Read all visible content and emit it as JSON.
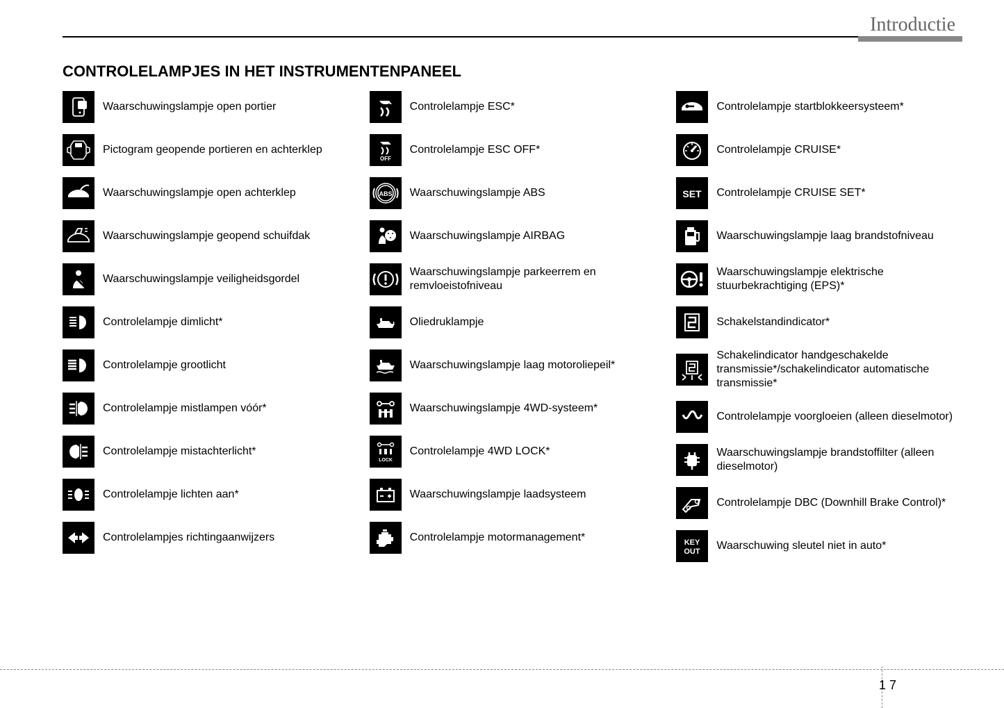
{
  "header": {
    "section": "Introductie",
    "title": "CONTROLELAMPJES IN HET INSTRUMENTENPANEEL"
  },
  "columns": [
    {
      "items": [
        {
          "icon": "door-open-icon",
          "label": "Waarschuwingslampje open portier"
        },
        {
          "icon": "doors-diagram-icon",
          "label": "Pictogram geopende portieren en achterklep"
        },
        {
          "icon": "trunk-open-icon",
          "label": "Waarschuwingslampje open achterklep"
        },
        {
          "icon": "sunroof-open-icon",
          "label": "Waarschuwingslampje geopend schuifdak"
        },
        {
          "icon": "seatbelt-icon",
          "label": "Waarschuwingslampje veiligheidsgordel"
        },
        {
          "icon": "low-beam-icon",
          "label": "Controlelampje dimlicht*"
        },
        {
          "icon": "high-beam-icon",
          "label": "Controlelampje grootlicht"
        },
        {
          "icon": "front-fog-icon",
          "label": "Controlelampje mistlampen vóór*"
        },
        {
          "icon": "rear-fog-icon",
          "label": "Controlelampje mistachterlicht*"
        },
        {
          "icon": "lights-on-icon",
          "label": "Controlelampje lichten aan*"
        },
        {
          "icon": "turn-signals-icon",
          "label": "Controlelampjes richtingaanwijzers"
        }
      ]
    },
    {
      "items": [
        {
          "icon": "esc-icon",
          "label": "Controlelampje ESC*"
        },
        {
          "icon": "esc-off-icon",
          "label": "Controlelampje ESC OFF*"
        },
        {
          "icon": "abs-icon",
          "label": "Waarschuwingslampje ABS"
        },
        {
          "icon": "airbag-icon",
          "label": "Waarschuwingslampje AIRBAG"
        },
        {
          "icon": "brake-warning-icon",
          "label": "Waarschuwingslampje parkeerrem en remvloeistofniveau"
        },
        {
          "icon": "oil-pressure-icon",
          "label": "Oliedruklampje"
        },
        {
          "icon": "oil-level-icon",
          "label": "Waarschuwingslampje laag motoroliepeil*"
        },
        {
          "icon": "4wd-icon",
          "label": "Waarschuwingslampje 4WD-systeem*"
        },
        {
          "icon": "4wd-lock-icon",
          "label": "Controlelampje 4WD LOCK*"
        },
        {
          "icon": "battery-icon",
          "label": "Waarschuwingslampje laadsysteem"
        },
        {
          "icon": "engine-icon",
          "label": "Controlelampje motormanagement*"
        }
      ]
    },
    {
      "items": [
        {
          "icon": "immobilizer-icon",
          "label": "Controlelampje startblokkeersysteem*"
        },
        {
          "icon": "cruise-icon",
          "label": "Controlelampje CRUISE*"
        },
        {
          "icon": "cruise-set-icon",
          "label": "Controlelampje CRUISE SET*"
        },
        {
          "icon": "fuel-low-icon",
          "label": "Waarschuwingslampje laag brandstofniveau"
        },
        {
          "icon": "eps-icon",
          "label": "Waarschuwingslampje elektrische stuurbekrachtiging (EPS)*"
        },
        {
          "icon": "gear-indicator-icon",
          "label": "Schakelstandindicator*"
        },
        {
          "icon": "shift-indicator-icon",
          "label": "Schakelindicator handgeschakelde transmissie*/schakelindicator automatische transmissie*"
        },
        {
          "icon": "glow-plug-icon",
          "label": "Controlelampje voorgloeien (alleen dieselmotor)"
        },
        {
          "icon": "fuel-filter-icon",
          "label": "Waarschuwingslampje brandstoffilter (alleen dieselmotor)"
        },
        {
          "icon": "dbc-icon",
          "label": "Controlelampje DBC (Downhill Brake Control)*"
        },
        {
          "icon": "key-out-icon",
          "label": "Waarschuwing sleutel niet in auto*"
        }
      ]
    }
  ],
  "page": {
    "chapter": "1",
    "number": "7"
  },
  "style": {
    "icon_bg": "#000000",
    "icon_fg": "#ffffff",
    "text_color": "#000000",
    "section_color": "#666666",
    "body_font": "Arial, Helvetica, sans-serif",
    "title_fontsize": 22,
    "label_fontsize": 16,
    "section_fontsize": 28,
    "icon_size": 46
  },
  "icon_svgs": {
    "door-open-icon": "<rect x='11' y='6' width='16' height='26' rx='3' fill='none' stroke='#fff' stroke-width='1.8'/><rect x='18' y='10' width='13' height='12' rx='2' fill='#fff'/><circle cx='21' cy='27' r='1.5' fill='#fff'/>",
    "doors-diagram-icon": "<path d='M12 6 h14 l4 6 v14 l-4 6 h-14 l-4-6 v-14 z' fill='none' stroke='#fff' stroke-width='1.5'/><rect x='14' y='9' width='10' height='6' fill='#fff'/><path d='M8 14 l-5 2 v6 l5 2 M30 14 l5 2 v6 l-5 2' fill='none' stroke='#fff' stroke-width='1.5'/>",
    "trunk-open-icon": "<path d='M4 22 c3-6 10-8 15-8 s12 2 15 8 v3 h-30 z' fill='#fff'/><path d='M22 14 q6 -8 12 -6' fill='none' stroke='#fff' stroke-width='2'/>",
    "sunroof-open-icon": "<path d='M4 24 c4-7 11-9 15-9 s11 2 15 9 v3 h-30 z' fill='none' stroke='#fff' stroke-width='1.8'/><path d='M14 15 l4-7 h6 l-2 7' fill='none' stroke='#fff' stroke-width='1.8'/><path d='M28 8 h4 M28 12 h4' stroke='#fff' stroke-width='1.5'/>",
    "seatbelt-icon": "<circle cx='19' cy='10' r='4' fill='#fff'/><path d='M11 32 c0-8 5-12 8-12 s8 4 8 12 z' fill='#fff'/><path d='M10 12 L28 30' stroke='#000' stroke-width='3'/>",
    "low-beam-icon": "<path d='M20 9 a10 10 0 0 1 0 20 z' fill='#fff'/><path d='M6 12 h10 M6 16 h10 M6 20 h10 M6 24 h10' stroke='#fff' stroke-width='2'/>",
    "high-beam-icon": "<path d='M20 9 a10 10 0 0 1 0 20 z' fill='#fff'/><path d='M4 12 h12 M4 16 h12 M4 20 h12 M4 24 h12' stroke='#fff' stroke-width='2.5'/>",
    "front-fog-icon": "<path d='M22 9 a10 10 0 0 1 0 20 l-4 -3 v-14 z' fill='#fff'/><path d='M6 13 h8 M6 19 h8 M6 25 h8' stroke='#fff' stroke-width='2.5'/><path d='M16 8 v22' stroke='#fff' stroke-width='1.5'/>",
    "rear-fog-icon": "<path d='M16 9 a10 10 0 0 0 0 20 l4 -3 v-14 z' fill='#fff'/><path d='M24 13 h8 M24 19 h8 M24 25 h8' stroke='#fff' stroke-width='2.5'/><path d='M22 8 v22' stroke='#fff' stroke-width='1.5'/>",
    "lights-on-icon": "<ellipse cx='19' cy='19' rx='6' ry='9' fill='#fff'/><path d='M4 14 h6 M4 19 h6 M4 24 h6 M28 14 h6 M28 19 h6 M28 24 h6' stroke='#fff' stroke-width='2'/>",
    "turn-signals-icon": "<path d='M4 19 l10-8 v5 h4 v6 h-4 v5 z' fill='#fff'/><path d='M34 19 l-10-8 v5 h-4 v6 h4 v5 z' fill='#fff'/>",
    "esc-icon": "<path d='M10 10 h14 l4 5 h-14 z' fill='#fff'/><circle cx='14' cy='16' r='2' fill='#000'/><circle cx='24' cy='16' r='2' fill='#000'/><path d='M12 20 q6 6 0 12 M20 20 q6 6 0 12' stroke='#fff' stroke-width='2.5' fill='none'/>",
    "esc-off-icon": "<path d='M11 7 h12 l4 4 h-12 z' fill='#fff'/><path d='M13 15 q5 5 0 10 M20 15 q5 5 0 10' stroke='#fff' stroke-width='2' fill='none'/><text x='19' y='34' font-size='8' fill='#fff' text-anchor='middle' font-family='Arial' font-weight='bold'>OFF</text>",
    "abs-icon": "<circle cx='19' cy='19' r='11' fill='none' stroke='#fff' stroke-width='1.5'/><circle cx='19' cy='19' r='14' fill='none' stroke='#fff' stroke-width='1.5'/><path d='M3 12 a17 17 0 0 0 0 14 M35 12 a17 17 0 0 1 0 14' stroke='#fff' stroke-width='2' fill='none'/><text x='19' y='23' font-size='9' fill='#fff' text-anchor='middle' font-family='Arial' font-weight='bold'>ABS</text>",
    "airbag-icon": "<circle cx='14' cy='10' r='3.5' fill='#fff'/><path d='M9 30 c0-7 3-12 6-12 l4 5 v7 z' fill='#fff'/><circle cx='26' cy='18' r='8' fill='#fff'/><circle cx='23' cy='15' r='1' fill='#000'/><circle cx='29' cy='15' r='1' fill='#000'/><circle cx='26' cy='21' r='1' fill='#000'/>",
    "brake-warning-icon": "<circle cx='19' cy='19' r='11' fill='none' stroke='#fff' stroke-width='2'/><path d='M4 11 a16 16 0 0 0 0 16 M34 11 a16 16 0 0 1 0 16' stroke='#fff' stroke-width='2.5' fill='none'/><rect x='17.5' y='12' width='3' height='9' fill='#fff'/><circle cx='19' cy='25' r='1.8' fill='#fff'/>",
    "oil-pressure-icon": "<path d='M6 21 h4 l2-4 h12 l3 4 h5 l-3 6 h-20 z' fill='#fff'/><rect x='11' y='13' width='3' height='4' fill='#fff'/><path d='M30 17 q3 3 0 6' fill='#fff'/>",
    "oil-level-icon": "<path d='M6 19 h4 l2-4 h12 l3 4 h5 l-3 6 h-20 z' fill='#fff'/><rect x='11' y='11' width='3' height='4' fill='#fff'/><path d='M6 29 q4 -2 8 0 t8 0 t8 0' stroke='#fff' stroke-width='1.5' fill='none'/>",
    "4wd-icon": "<circle cx='10' cy='12' r='3' fill='none' stroke='#fff' stroke-width='1.8'/><circle cx='28' cy='12' r='3' fill='none' stroke='#fff' stroke-width='1.8'/><path d='M13 12 h12' stroke='#fff' stroke-width='1.8'/><rect x='9' y='20' width='4' height='12' fill='#fff'/><rect x='17' y='20' width='4' height='12' fill='#fff'/><rect x='25' y='20' width='4' height='12' fill='#fff'/><path d='M11 24 h16' stroke='#fff' stroke-width='2'/>",
    "4wd-lock-icon": "<circle cx='10' cy='9' r='2.5' fill='none' stroke='#fff' stroke-width='1.5'/><circle cx='28' cy='9' r='2.5' fill='none' stroke='#fff' stroke-width='1.5'/><path d='M12 9 h14' stroke='#fff' stroke-width='1.5'/><rect x='10' y='15' width='3' height='8' fill='#fff'/><rect x='17' y='15' width='4' height='8' fill='#fff'/><rect x='25' y='15' width='3' height='8' fill='#fff'/><text x='19' y='33' font-size='7' fill='#fff' text-anchor='middle' font-family='Arial' font-weight='bold'>LOCK</text>",
    "battery-icon": "<rect x='7' y='13' width='24' height='16' fill='none' stroke='#fff' stroke-width='2'/><rect x='11' y='9' width='4' height='4' fill='#fff'/><rect x='23' y='9' width='4' height='4' fill='#fff'/><path d='M11 21 h5' stroke='#fff' stroke-width='2'/><path d='M22 21 h5 M24.5 18.5 v5' stroke='#fff' stroke-width='2'/>",
    "engine-icon": "<path d='M9 14 h4 v-3 h10 v3 h4 v4 h3 v6 h-3 v4 h-6 l-4 4 h-8 v-4 h-3 v-6 h3 z' fill='#fff'/><rect x='15' y='7' width='6' height='3' fill='#fff'/>",
    "immobilizer-icon": "<path d='M4 20 c3-6 10-8 15-8 s12 2 15 8 v4 h-30 z' fill='#fff'/><circle cx='12' cy='18' r='2.5' fill='#000'/><path d='M14 18 h8' stroke='#000' stroke-width='2.5'/>",
    "cruise-icon": "<circle cx='19' cy='20' r='12' fill='none' stroke='#fff' stroke-width='2'/><path d='M19 9 v3 M9 20 h3 M26 20 h3 M12 13 l2 2 M26 13 l-2 2' stroke='#fff' stroke-width='1.5'/><path d='M19 20 l5-6' stroke='#fff' stroke-width='3' stroke-linecap='round'/><circle cx='19' cy='20' r='2' fill='#fff'/>",
    "cruise-set-icon": "<text x='19' y='25' font-size='14' fill='#fff' text-anchor='middle' font-family='Arial' font-weight='bold'>SET</text>",
    "fuel-low-icon": "<rect x='9' y='10' width='16' height='22' rx='2' fill='#fff'/><rect x='12' y='6' width='10' height='4' fill='#fff'/><path d='M25 14 h4 v10 a2 2 0 0 1-4 0' fill='none' stroke='#fff' stroke-width='2'/><rect x='12' y='13' width='10' height='6' fill='#000'/>",
    "eps-icon": "<circle cx='15' cy='19' r='11' fill='none' stroke='#fff' stroke-width='2.5'/><circle cx='15' cy='19' r='3' fill='#fff'/><path d='M5 19 h20 M15 19 v10' stroke='#fff' stroke-width='2.5'/><rect x='30' y='9' width='4' height='13' fill='#fff'/><circle cx='32' cy='27' r='2.5' fill='#fff'/>",
    "gear-indicator-icon": "<rect x='9' y='7' width='20' height='24' fill='none' stroke='#fff' stroke-width='2'/><path d='M14 12 h10 v7 h-10 v7 h10' fill='none' stroke='#fff' stroke-width='2.5'/>",
    "shift-indicator-icon": "<rect x='11' y='7' width='16' height='18' fill='none' stroke='#fff' stroke-width='1.8'/><path d='M15 11 h8 v5 h-8 v5 h8' fill='none' stroke='#fff' stroke-width='1.8'/><path d='M10 30 l-5 4 M10 30 l-5-4 M28 30 l5 4 M28 30 l5-4' stroke='#fff' stroke-width='1.8'/><path d='M19 27 v7' stroke='#fff' stroke-width='1.8'/>",
    "glow-plug-icon": "<path d='M6 16 q4 10 9 0 t9 0' fill='none' stroke='#fff' stroke-width='3'/><path d='M24 16 q4 10 9 0' fill='none' stroke='#fff' stroke-width='3'/>",
    "fuel-filter-icon": "<rect x='12' y='12' width='14' height='16' rx='3' fill='#fff'/><path d='M15 8 v4 M23 8 v4 M19 28 v5' stroke='#fff' stroke-width='2.5'/><path d='M8 16 h4 M8 22 h4 M26 16 h4 M26 22 h4' stroke='#fff' stroke-width='2'/>",
    "dbc-icon": "<path d='M6 28 l12-14 h12 l-2 8 -10 2 -8 8 z' fill='none' stroke='#fff' stroke-width='2'/><circle cx='14' cy='26' r='2.5' fill='none' stroke='#fff' stroke-width='1.5'/><circle cx='26' cy='17' r='2.5' fill='none' stroke='#fff' stroke-width='1.5'/>",
    "key-out-icon": "<text x='19' y='17' font-size='11' fill='#fff' text-anchor='middle' font-family='Arial' font-weight='bold'>KEY</text><text x='19' y='30' font-size='11' fill='#fff' text-anchor='middle' font-family='Arial' font-weight='bold'>OUT</text>"
  }
}
